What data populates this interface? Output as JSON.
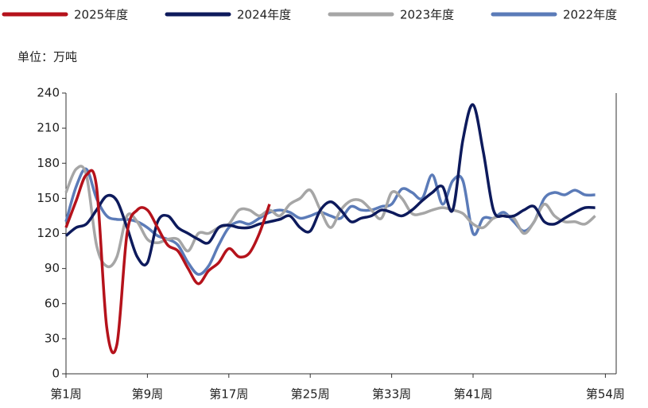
{
  "chart_data": {
    "type": "line",
    "unit_label": "单位：万吨",
    "categories": [
      "第1周",
      null,
      null,
      null,
      null,
      null,
      null,
      null,
      "第9周",
      null,
      null,
      null,
      null,
      null,
      null,
      null,
      "第17周",
      null,
      null,
      null,
      null,
      null,
      null,
      null,
      "第25周",
      null,
      null,
      null,
      null,
      null,
      null,
      null,
      "第33周",
      null,
      null,
      null,
      null,
      null,
      null,
      null,
      "第41周",
      null,
      null,
      null,
      null,
      null,
      null,
      null,
      null,
      null,
      null,
      null,
      null,
      "第54周"
    ],
    "ylim": [
      0,
      240
    ],
    "yticks": [
      0,
      30,
      60,
      90,
      120,
      150,
      180,
      210,
      240
    ],
    "series": [
      {
        "name": "2025年度",
        "color": "#b5121b",
        "values": [
          125,
          148,
          170,
          160,
          40,
          25,
          120,
          140,
          140,
          125,
          110,
          105,
          90,
          77,
          88,
          95,
          107,
          100,
          103,
          120,
          145,
          null,
          null,
          null,
          null,
          null,
          null,
          null,
          null,
          null,
          null,
          null,
          null,
          null,
          null,
          null,
          null,
          null,
          null,
          null,
          null,
          null,
          null,
          null,
          null,
          null,
          null,
          null,
          null,
          null,
          null,
          null,
          null,
          null
        ]
      },
      {
        "name": "2024年度",
        "color": "#0d1a5c",
        "values": [
          118,
          125,
          128,
          140,
          152,
          148,
          125,
          100,
          95,
          130,
          135,
          125,
          120,
          115,
          112,
          125,
          127,
          125,
          125,
          128,
          130,
          132,
          135,
          125,
          122,
          140,
          147,
          140,
          130,
          133,
          135,
          140,
          138,
          135,
          140,
          148,
          155,
          160,
          140,
          200,
          230,
          190,
          140,
          135,
          135,
          140,
          143,
          130,
          128,
          133,
          138,
          142,
          142,
          null
        ]
      },
      {
        "name": "2023年度",
        "color": "#a6a6a6",
        "values": [
          155,
          175,
          170,
          110,
          92,
          100,
          135,
          130,
          115,
          112,
          115,
          115,
          105,
          120,
          120,
          125,
          128,
          140,
          140,
          135,
          140,
          135,
          145,
          150,
          157,
          140,
          125,
          140,
          148,
          148,
          140,
          133,
          155,
          150,
          137,
          137,
          140,
          142,
          140,
          137,
          128,
          125,
          133,
          135,
          133,
          120,
          130,
          145,
          135,
          130,
          130,
          128,
          135,
          null
        ]
      },
      {
        "name": "2022年度",
        "color": "#5b7bb8",
        "values": [
          130,
          160,
          175,
          150,
          135,
          132,
          132,
          130,
          125,
          118,
          115,
          110,
          95,
          85,
          92,
          110,
          125,
          130,
          128,
          133,
          138,
          140,
          138,
          133,
          135,
          138,
          135,
          133,
          143,
          140,
          140,
          143,
          145,
          158,
          155,
          150,
          170,
          145,
          165,
          165,
          120,
          133,
          133,
          138,
          130,
          122,
          130,
          150,
          155,
          153,
          157,
          153,
          153,
          null
        ]
      }
    ]
  }
}
